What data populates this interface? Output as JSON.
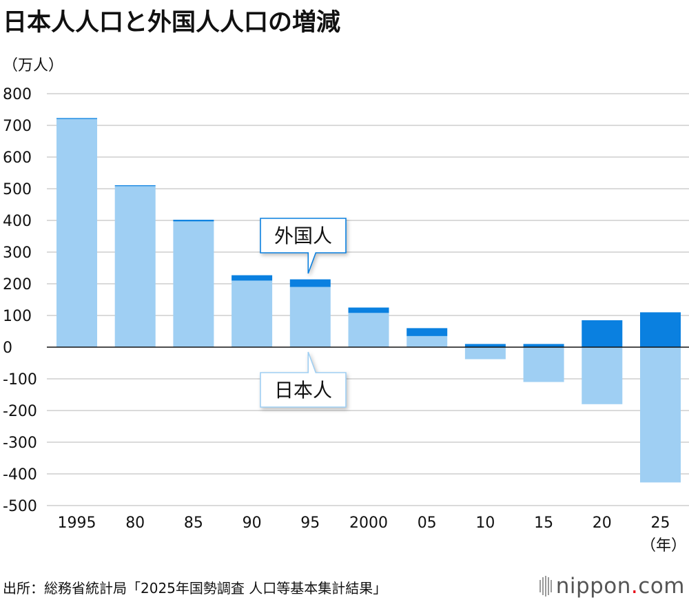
{
  "title": "日本人人口と外国人人口の増減",
  "unit_label": "（万人）",
  "source": "出所：総務省統計局「2025年国勢調査 人口等基本集計結果」",
  "logo": {
    "name": "nippon",
    "dot": ".",
    "suffix": "com"
  },
  "chart_data": {
    "type": "bar",
    "stacked": true,
    "categories": [
      "1995",
      "80",
      "85",
      "90",
      "95",
      "2000",
      "05",
      "10",
      "15",
      "20",
      "25"
    ],
    "x_unit_label": "（年）",
    "series": [
      {
        "name": "日本人",
        "color": "#9fcff3",
        "values": [
          720,
          508,
          397,
          210,
          190,
          108,
          35,
          -38,
          -110,
          -180,
          -427
        ]
      },
      {
        "name": "外国人",
        "color": "#0a80e0",
        "values": [
          3,
          3,
          5,
          17,
          24,
          17,
          25,
          10,
          10,
          85,
          110
        ]
      }
    ],
    "ylim": [
      -500,
      800
    ],
    "yticks": [
      800,
      700,
      600,
      500,
      400,
      300,
      200,
      100,
      0,
      -100,
      -200,
      -300,
      -400,
      -500
    ],
    "grid": true,
    "annotations": [
      {
        "text": "外国人",
        "target_series": "外国人",
        "category": "95",
        "placement": "above"
      },
      {
        "text": "日本人",
        "target_series": "日本人",
        "category": "95",
        "placement": "below"
      }
    ]
  }
}
